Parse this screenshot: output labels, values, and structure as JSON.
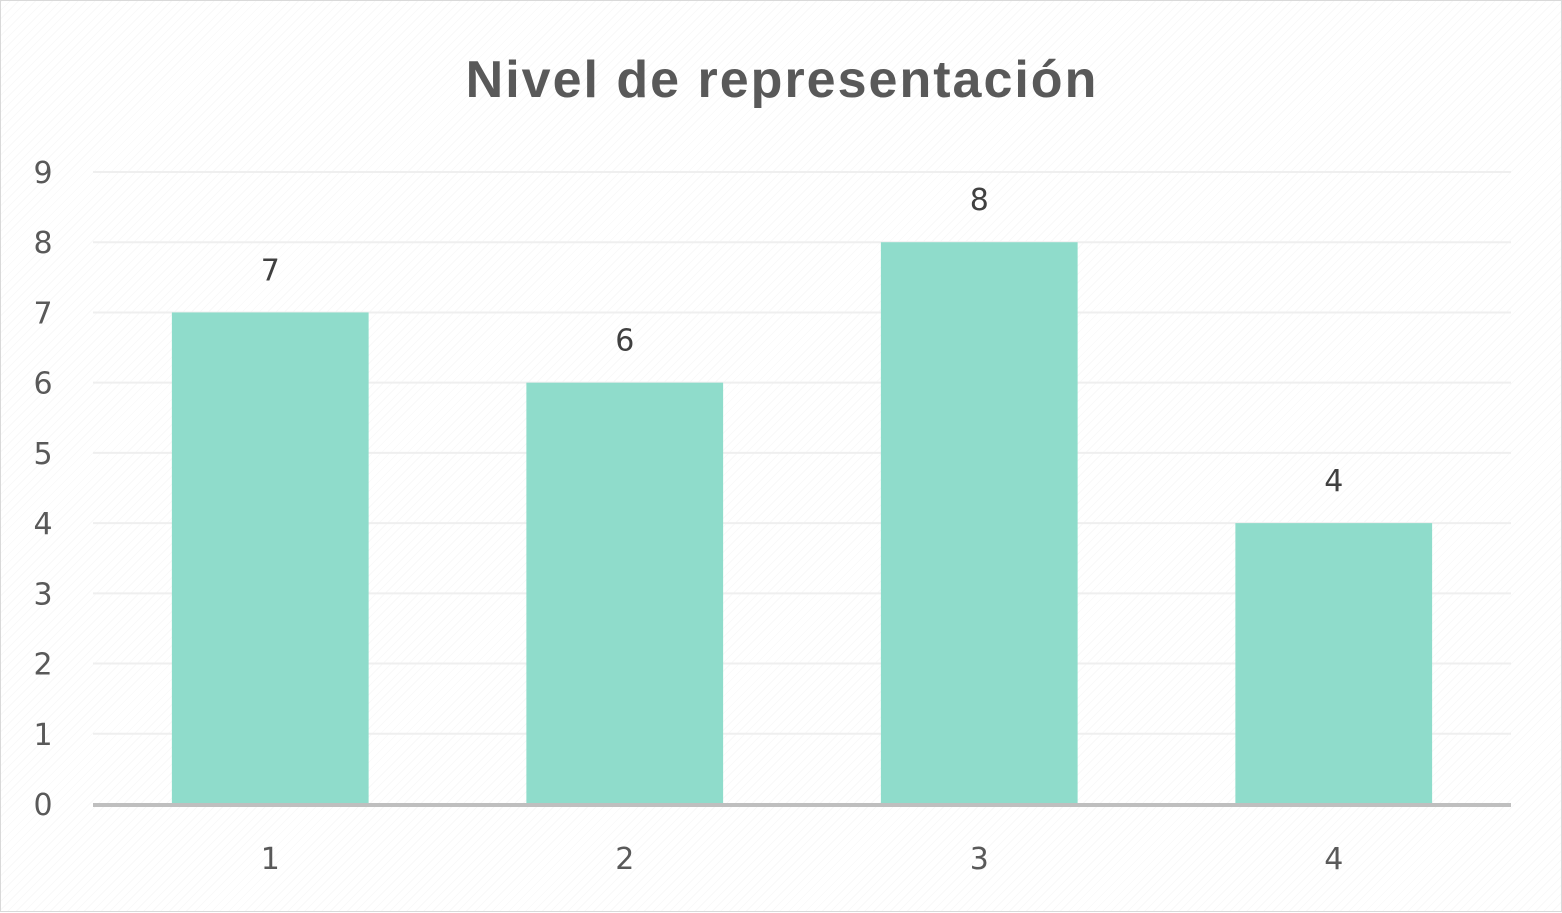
{
  "chart_data": {
    "type": "bar",
    "title": "Nivel de representación",
    "xlabel": "",
    "ylabel": "",
    "categories": [
      "1",
      "2",
      "3",
      "4"
    ],
    "values": [
      7,
      6,
      8,
      4
    ],
    "data_labels": [
      "7",
      "6",
      "8",
      "4"
    ],
    "y_ticks": [
      "0",
      "1",
      "2",
      "3",
      "4",
      "5",
      "6",
      "7",
      "8",
      "9"
    ],
    "ylim": [
      0,
      9
    ],
    "grid": true,
    "legend": "none",
    "colors": {
      "bar": "#8fdccb",
      "grid": "#efefef",
      "axis": "#bfbfbf",
      "text": "#595959"
    }
  }
}
